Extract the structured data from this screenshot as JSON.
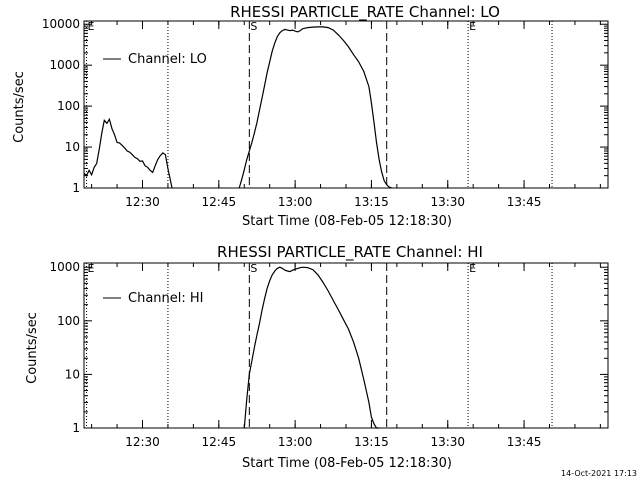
{
  "footer": {
    "timestamp": "14-Oct-2021 17:13"
  },
  "chart_data": [
    {
      "type": "line",
      "title": "RHESSI PARTICLE_RATE Channel: LO",
      "xlabel": "Start Time (08-Feb-05 12:18:30)",
      "ylabel": "Counts/sec",
      "x_unit": "minutes after 12:18:30",
      "xlim": [
        0,
        103
      ],
      "ylim": [
        1,
        12000
      ],
      "y_scale": "log",
      "x_ticks": [
        {
          "x": 11.5,
          "label": "12:30"
        },
        {
          "x": 26.5,
          "label": "12:45"
        },
        {
          "x": 41.5,
          "label": "13:00"
        },
        {
          "x": 56.5,
          "label": "13:15"
        },
        {
          "x": 71.5,
          "label": "13:30"
        },
        {
          "x": 86.5,
          "label": "13:45"
        }
      ],
      "y_ticks": [
        {
          "y": 1,
          "label": "1"
        },
        {
          "y": 10,
          "label": "10"
        },
        {
          "y": 100,
          "label": "100"
        },
        {
          "y": 1000,
          "label": "1000"
        },
        {
          "y": 10000,
          "label": "10000"
        }
      ],
      "legend": {
        "position": "top-left",
        "label": "Channel: LO"
      },
      "markers": [
        {
          "x": 0.5,
          "style": "dotted",
          "label": "E"
        },
        {
          "x": 16.5,
          "style": "dotted",
          "label": ""
        },
        {
          "x": 32.5,
          "style": "dashed",
          "label": "S"
        },
        {
          "x": 59.5,
          "style": "dashed",
          "label": ""
        },
        {
          "x": 75.5,
          "style": "dotted",
          "label": "E"
        },
        {
          "x": 92.0,
          "style": "dotted",
          "label": ""
        }
      ],
      "series": [
        {
          "segments": [
            {
              "x": [
                0,
                0.5,
                1,
                1.5,
                2,
                2.5,
                3,
                3.5,
                4,
                4.5,
                5,
                5.5,
                6,
                6.5,
                7,
                7.5,
                8,
                8.5,
                9,
                9.5,
                10,
                10.5,
                11,
                11.5,
                12,
                12.5,
                13,
                13.5,
                14,
                14.5,
                15,
                15.5,
                16,
                16.5,
                17,
                17.3
              ],
              "y": [
                2.3,
                2.0,
                2.7,
                2.1,
                3.2,
                4.0,
                9.0,
                22,
                45,
                38,
                48,
                28,
                20,
                13,
                12.5,
                11,
                9.5,
                8,
                7.5,
                6.5,
                5.6,
                5.2,
                4.5,
                4.6,
                3.5,
                3.2,
                2.7,
                2.4,
                3.5,
                5.0,
                6.2,
                7.2,
                6.5,
                3.0,
                1.5,
                1.0
              ]
            },
            {
              "x": [
                30.5,
                31,
                31.5,
                32,
                32.5,
                33,
                33.5,
                34,
                34.5,
                35,
                35.5,
                36,
                36.5,
                37,
                37.5,
                38,
                38.5,
                39,
                39.5,
                40,
                40.5,
                41,
                41.5,
                42,
                42.5,
                43,
                44,
                45,
                46,
                47,
                48,
                49,
                50,
                51,
                52,
                53,
                54,
                55,
                56,
                56.5,
                57,
                57.5,
                58,
                58.5,
                59,
                59.5,
                60,
                60.5
              ],
              "y": [
                1.0,
                1.6,
                2.8,
                5.0,
                8.0,
                13,
                22,
                40,
                80,
                160,
                320,
                650,
                1200,
                2200,
                3500,
                5000,
                6200,
                7000,
                7500,
                7200,
                7000,
                7200,
                6800,
                6500,
                7000,
                7800,
                8300,
                8500,
                8600,
                8600,
                8300,
                7200,
                5500,
                4000,
                2800,
                1800,
                1200,
                700,
                300,
                120,
                40,
                13,
                5,
                2.5,
                1.5,
                1.2,
                1.05,
                1.0
              ]
            }
          ]
        }
      ]
    },
    {
      "type": "line",
      "title": "RHESSI PARTICLE_RATE Channel: HI",
      "xlabel": "Start Time (08-Feb-05 12:18:30)",
      "ylabel": "Counts/sec",
      "x_unit": "minutes after 12:18:30",
      "xlim": [
        0,
        103
      ],
      "ylim": [
        1,
        1200
      ],
      "y_scale": "log",
      "x_ticks": [
        {
          "x": 11.5,
          "label": "12:30"
        },
        {
          "x": 26.5,
          "label": "12:45"
        },
        {
          "x": 41.5,
          "label": "13:00"
        },
        {
          "x": 56.5,
          "label": "13:15"
        },
        {
          "x": 71.5,
          "label": "13:30"
        },
        {
          "x": 86.5,
          "label": "13:45"
        }
      ],
      "y_ticks": [
        {
          "y": 1,
          "label": "1"
        },
        {
          "y": 10,
          "label": "10"
        },
        {
          "y": 100,
          "label": "100"
        },
        {
          "y": 1000,
          "label": "1000"
        }
      ],
      "legend": {
        "position": "top-left",
        "label": "Channel: HI"
      },
      "markers": [
        {
          "x": 0.5,
          "style": "dotted",
          "label": "E"
        },
        {
          "x": 16.5,
          "style": "dotted",
          "label": ""
        },
        {
          "x": 32.5,
          "style": "dashed",
          "label": "S"
        },
        {
          "x": 59.5,
          "style": "dashed",
          "label": ""
        },
        {
          "x": 75.5,
          "style": "dotted",
          "label": "E"
        },
        {
          "x": 92.0,
          "style": "dotted",
          "label": ""
        }
      ],
      "series": [
        {
          "segments": [
            {
              "x": [
                31.5,
                32,
                32.5,
                33,
                33.5,
                34,
                34.5,
                35,
                35.5,
                36,
                36.5,
                37,
                37.5,
                38,
                38.5,
                39,
                39.5,
                40,
                40.5,
                41,
                41.5,
                42,
                42.5,
                43,
                44,
                45,
                46,
                47,
                48,
                49,
                50,
                51,
                52,
                53,
                54,
                55,
                56,
                56.5,
                57,
                57.5,
                58
              ],
              "y": [
                1.0,
                3.5,
                10,
                18,
                32,
                55,
                90,
                160,
                260,
                400,
                560,
                720,
                850,
                950,
                1000,
                950,
                880,
                850,
                830,
                880,
                920,
                950,
                980,
                1000,
                980,
                900,
                720,
                520,
                360,
                240,
                160,
                105,
                70,
                40,
                20,
                8,
                3.0,
                1.6,
                1.2,
                1.0,
                1.0
              ]
            }
          ]
        }
      ]
    }
  ]
}
